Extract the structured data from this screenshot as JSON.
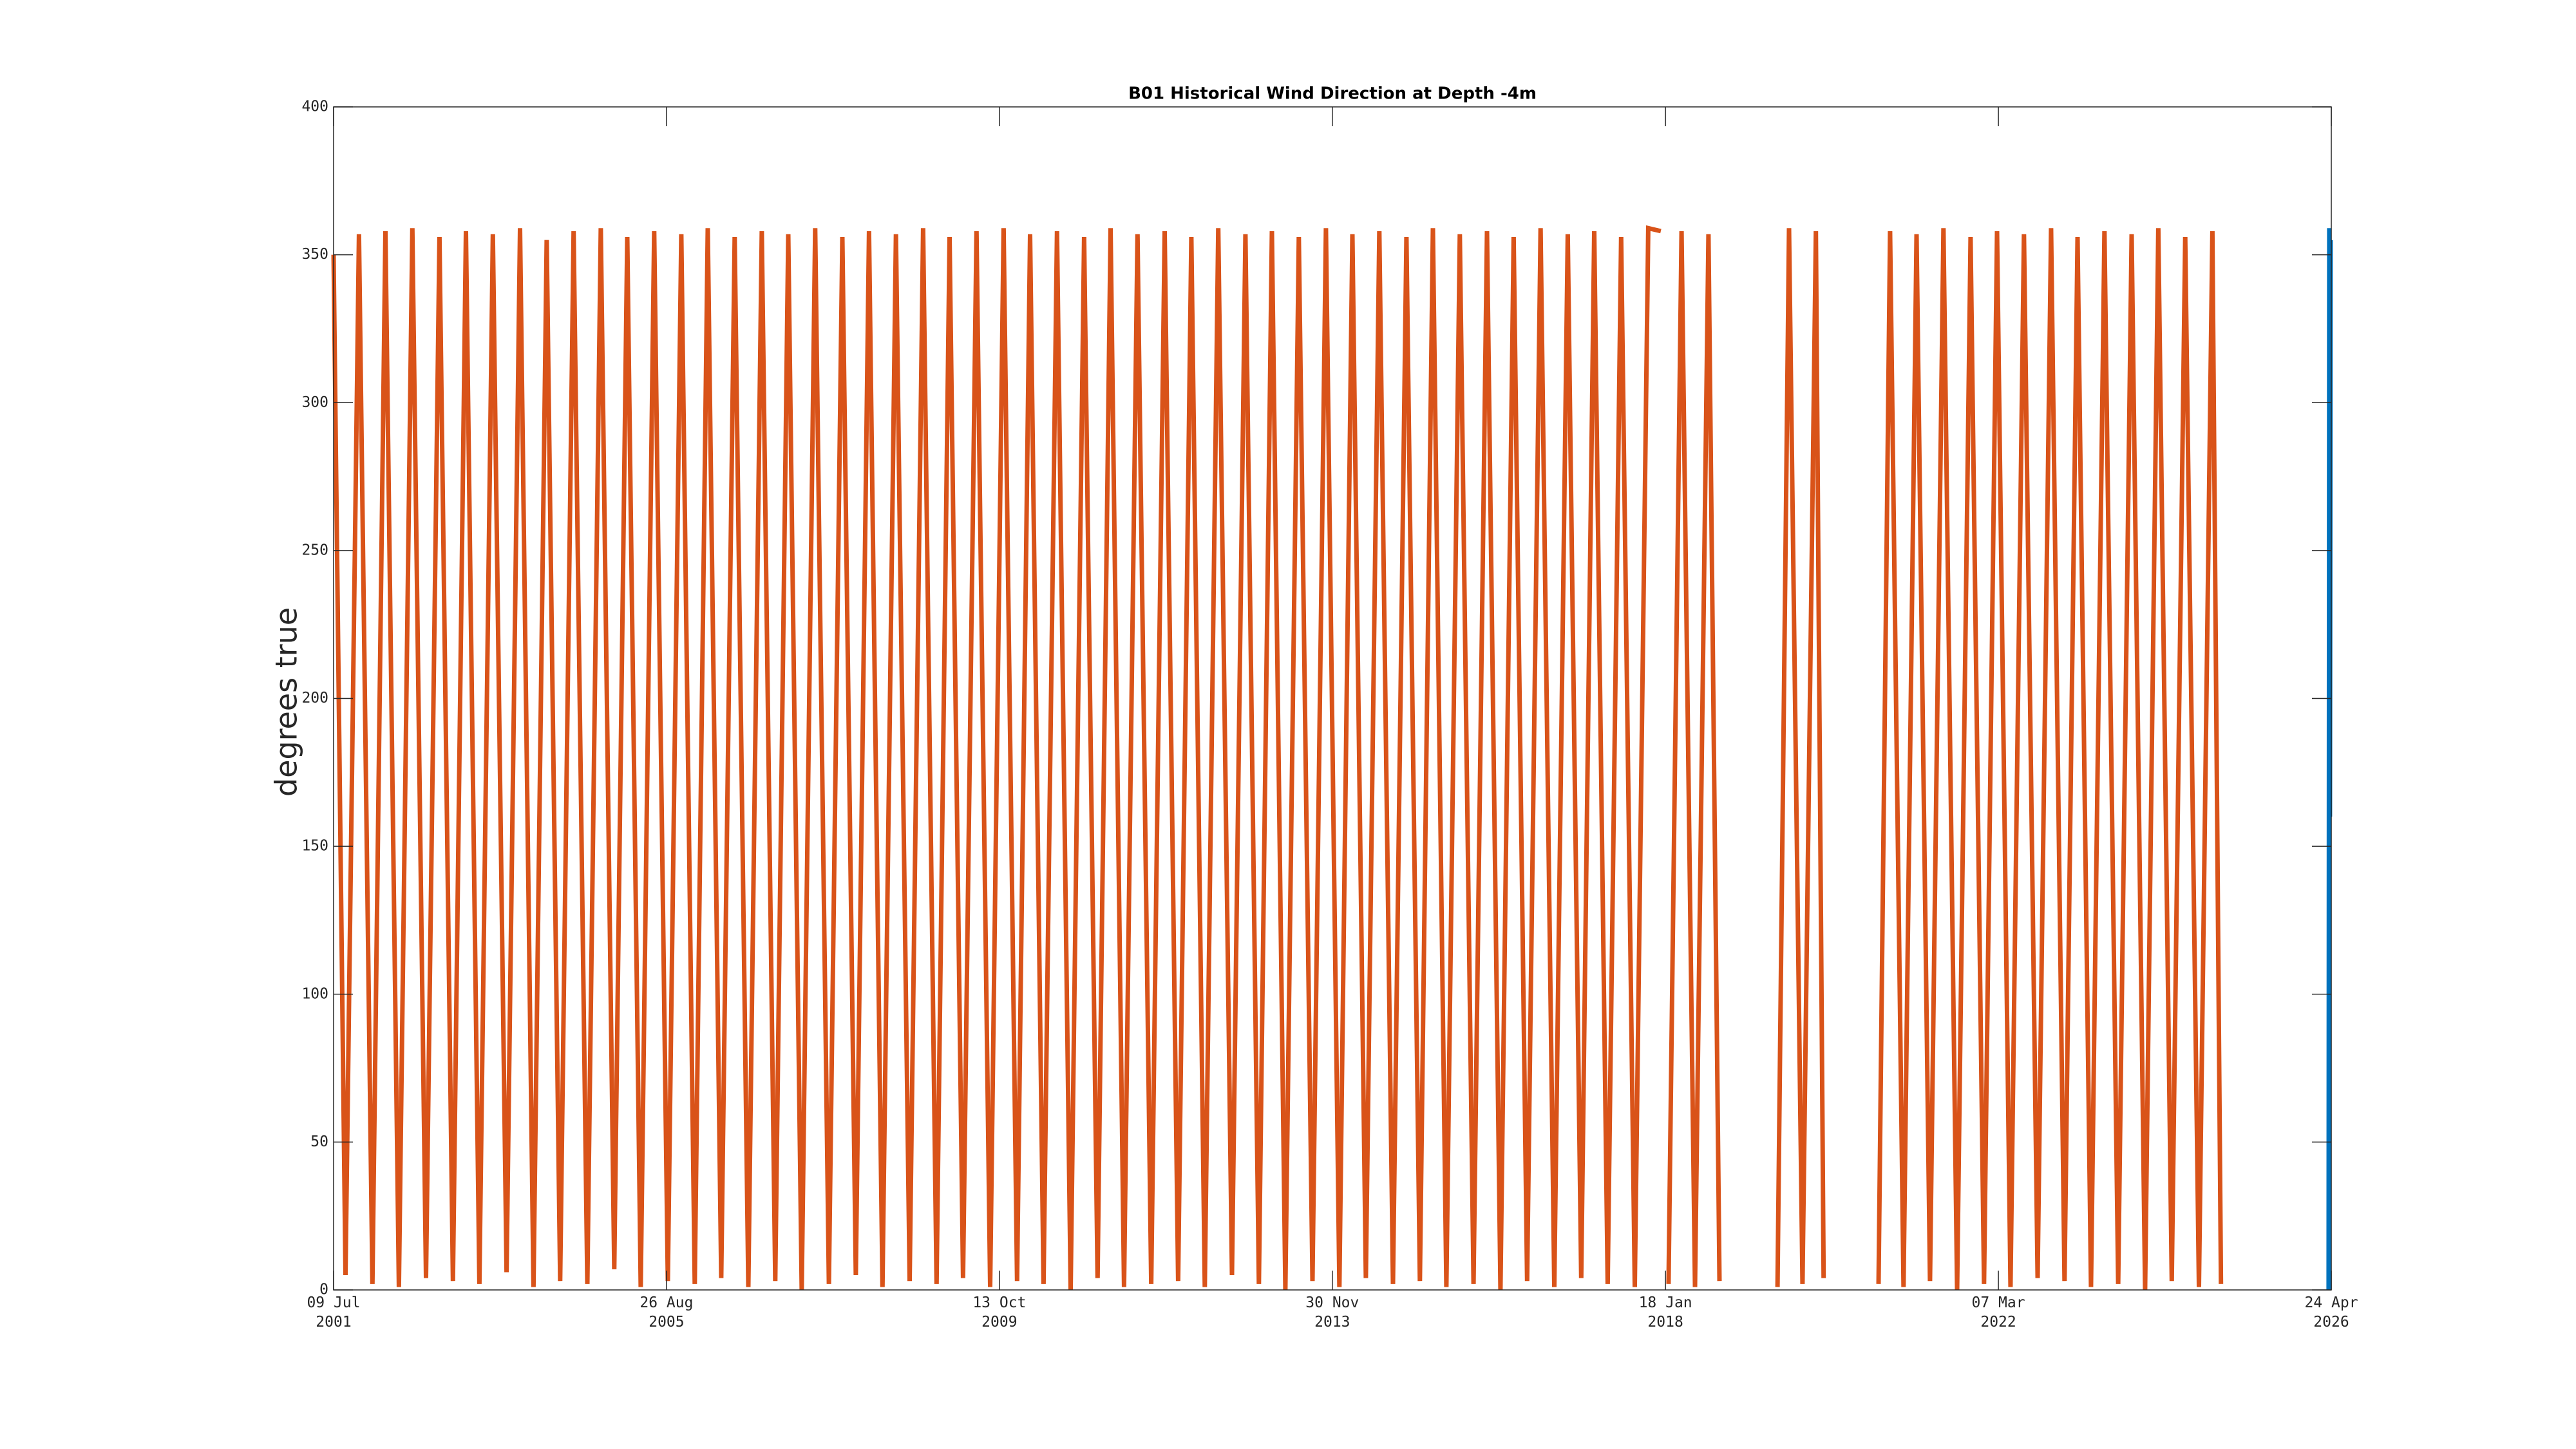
{
  "chart_data": {
    "type": "line",
    "title": "B01 Historical Wind Direction at Depth -4m",
    "ylabel": "degrees true",
    "ylim": [
      0,
      400
    ],
    "yticks": [
      0,
      50,
      100,
      150,
      200,
      250,
      300,
      350,
      400
    ],
    "xlim": [
      "2001-07-09",
      "2026-04-24"
    ],
    "xticks": [
      {
        "value": "2001-07-09",
        "label": "09 Jul\n2001"
      },
      {
        "value": "2005-08-26",
        "label": "26 Aug\n2005"
      },
      {
        "value": "2009-10-13",
        "label": "13 Oct\n2009"
      },
      {
        "value": "2013-11-30",
        "label": "30 Nov\n2013"
      },
      {
        "value": "2018-01-18",
        "label": "18 Jan\n2018"
      },
      {
        "value": "2022-03-07",
        "label": "07 Mar\n2022"
      },
      {
        "value": "2026-04-24",
        "label": "24 Apr\n2026"
      }
    ],
    "series": [
      {
        "color": "#d95319",
        "x": [
          "2001-07-09",
          "2001-09-01",
          "2001-11-01",
          "2002-01-01",
          "2002-03-01",
          "2002-05-01",
          "2002-07-01",
          "2002-09-01",
          "2002-11-01",
          "2003-01-01",
          "2003-03-01",
          "2003-05-01",
          "2003-07-01",
          "2003-09-01",
          "2003-11-01",
          "2004-01-01",
          "2004-03-01",
          "2004-05-01",
          "2004-07-01",
          "2004-09-01",
          "2004-11-01",
          "2005-01-01",
          "2005-03-01",
          "2005-05-01",
          "2005-07-01",
          "2005-09-01",
          "2005-11-01",
          "2006-01-01",
          "2006-03-01",
          "2006-05-01",
          "2006-07-01",
          "2006-09-01",
          "2006-11-01",
          "2007-01-01",
          "2007-03-01",
          "2007-05-01",
          "2007-07-01",
          "2007-09-01",
          "2007-11-01",
          "2008-01-01",
          "2008-03-01",
          "2008-05-01",
          "2008-07-01",
          "2008-09-01",
          "2008-11-01",
          "2009-01-01",
          "2009-03-01",
          "2009-05-01",
          "2009-07-01",
          "2009-09-01",
          "2009-11-01",
          "2010-01-01",
          "2010-03-01",
          "2010-05-01",
          "2010-07-01",
          "2010-09-01",
          "2010-11-01",
          "2011-01-01",
          "2011-03-01",
          "2011-05-01",
          "2011-07-01",
          "2011-09-01",
          "2011-11-01",
          "2012-01-01",
          "2012-03-01",
          "2012-05-01",
          "2012-07-01",
          "2012-09-01",
          "2012-11-01",
          "2013-01-01",
          "2013-03-01",
          "2013-05-01",
          "2013-07-01",
          "2013-09-01",
          "2013-11-01",
          "2014-01-01",
          "2014-03-01",
          "2014-05-01",
          "2014-07-01",
          "2014-09-01",
          "2014-11-01",
          "2015-01-01",
          "2015-03-01",
          "2015-05-01",
          "2015-07-01",
          "2015-09-01",
          "2015-11-01",
          "2016-01-01",
          "2016-03-01",
          "2016-05-01",
          "2016-07-01",
          "2016-09-01",
          "2016-11-01",
          "2017-01-01",
          "2017-03-01",
          "2017-05-01",
          "2017-07-01",
          "2017-09-01",
          "2017-11-01",
          "2017-12-28",
          "2018-01-15",
          "2018-02-01",
          "2018-04-01",
          "2018-06-01",
          "2018-08-01",
          "2018-09-20",
          "2019-01-01",
          "2019-06-10",
          "2019-08-01",
          "2019-10-01",
          "2019-12-01",
          "2020-01-05",
          "2020-05-01",
          "2020-09-10",
          "2020-11-01",
          "2021-01-01",
          "2021-03-01",
          "2021-05-01",
          "2021-07-01",
          "2021-09-01",
          "2021-11-01",
          "2022-01-01",
          "2022-03-01",
          "2022-05-01",
          "2022-07-01",
          "2022-09-01",
          "2022-11-01",
          "2023-01-01",
          "2023-03-01",
          "2023-05-01",
          "2023-07-01",
          "2023-09-01",
          "2023-11-01",
          "2024-01-01",
          "2024-03-01",
          "2024-05-01",
          "2024-07-01",
          "2024-09-01",
          "2024-11-01",
          "2024-12-10"
        ],
        "values": [
          350,
          5,
          357,
          2,
          358,
          1,
          359,
          4,
          356,
          3,
          358,
          2,
          357,
          6,
          359,
          1,
          355,
          3,
          358,
          2,
          359,
          7,
          356,
          1,
          358,
          3,
          357,
          2,
          359,
          4,
          356,
          1,
          358,
          3,
          357,
          0,
          359,
          2,
          356,
          5,
          358,
          1,
          357,
          3,
          359,
          2,
          356,
          4,
          358,
          1,
          359,
          3,
          357,
          2,
          358,
          0,
          356,
          4,
          359,
          1,
          357,
          2,
          358,
          3,
          356,
          1,
          359,
          5,
          357,
          2,
          358,
          0,
          356,
          3,
          359,
          1,
          357,
          4,
          358,
          2,
          356,
          3,
          359,
          1,
          357,
          2,
          358,
          0,
          356,
          3,
          359,
          1,
          357,
          4,
          358,
          2,
          356,
          1,
          359,
          358,
          null,
          2,
          358,
          1,
          357,
          3,
          null,
          1,
          359,
          2,
          358,
          4,
          null,
          2,
          358,
          1,
          357,
          3,
          359,
          0,
          356,
          2,
          358,
          1,
          357,
          4,
          359,
          3,
          356,
          1,
          358,
          2,
          357,
          0,
          359,
          3,
          356,
          1,
          358,
          2
        ]
      },
      {
        "color": "#0072bd",
        "x": [
          "2026-04-12",
          "2026-04-15",
          "2026-04-18",
          "2026-04-21"
        ],
        "values": [
          0,
          359,
          160,
          355
        ]
      }
    ]
  }
}
